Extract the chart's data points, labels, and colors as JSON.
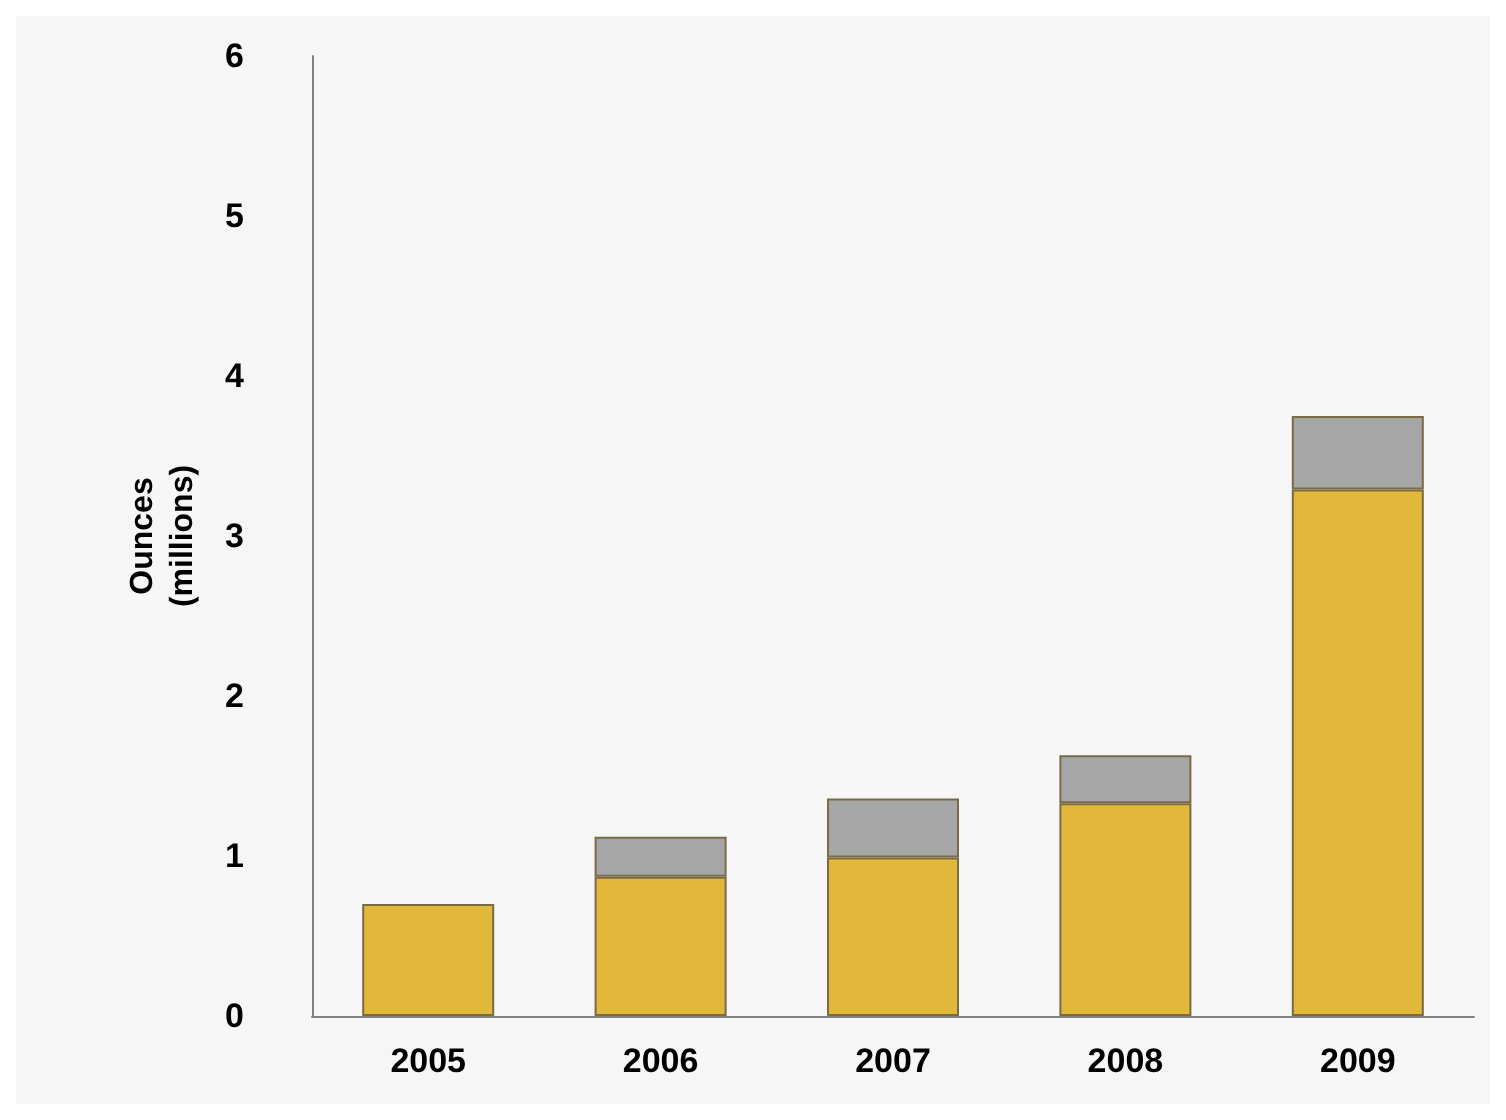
{
  "chart_data": {
    "type": "bar",
    "stacked": true,
    "ylabel": "Ounces\n(millions)",
    "categories": [
      "2005",
      "2006",
      "2007",
      "2008",
      "2009"
    ],
    "series": [
      {
        "color": "#e2b83a",
        "values": [
          0.7,
          0.87,
          0.99,
          1.33,
          3.29
        ]
      },
      {
        "color": "#a6a6a6",
        "values": [
          null,
          0.25,
          0.37,
          0.3,
          0.46
        ]
      }
    ],
    "ylim": [
      0,
      6
    ],
    "yticks": [
      0,
      1,
      2,
      3,
      4,
      5,
      6
    ],
    "grid": false
  }
}
